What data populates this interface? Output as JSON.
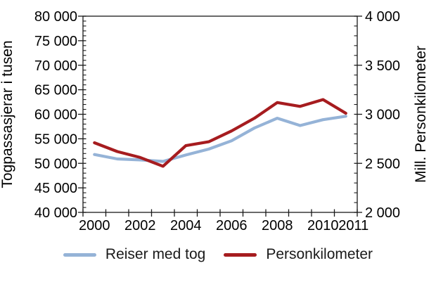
{
  "chart_data": {
    "type": "line",
    "title": "",
    "categories": [
      2000,
      2001,
      2002,
      2003,
      2004,
      2005,
      2006,
      2007,
      2008,
      2009,
      2010,
      2011
    ],
    "series": [
      {
        "name": "Reiser med tog",
        "axis": "left",
        "color": "#95B3D7",
        "values": [
          51800,
          50900,
          50700,
          50400,
          51700,
          52900,
          54600,
          57200,
          59200,
          57700,
          58900,
          59600
        ]
      },
      {
        "name": "Personkilometer",
        "axis": "right",
        "color": "#A61C1F",
        "values": [
          2710,
          2620,
          2560,
          2470,
          2680,
          2720,
          2830,
          2960,
          3120,
          3080,
          3150,
          3010
        ]
      }
    ],
    "left_axis": {
      "title": "Togpassasjerar i tusen",
      "min": 40000,
      "max": 80000,
      "major_step": 5000,
      "minor_step": 1000,
      "tick_labels": [
        "80 000",
        "75 000",
        "70 000",
        "65 000",
        "60 000",
        "55 000",
        "50 000",
        "45 000",
        "40 000"
      ]
    },
    "right_axis": {
      "title": "Mill. Personkilometer",
      "min": 2000,
      "max": 4000,
      "major_step": 500,
      "minor_step": 100,
      "tick_labels": [
        "4 000",
        "3 500",
        "3 000",
        "2 500",
        "2 000"
      ]
    },
    "x_axis": {
      "tick_labels": [
        {
          "text": "2000",
          "index": 0
        },
        {
          "text": "2002",
          "index": 2
        },
        {
          "text": "2004",
          "index": 4
        },
        {
          "text": "2006",
          "index": 6
        },
        {
          "text": "2008",
          "index": 8
        },
        {
          "text": "2010",
          "index": 10
        },
        {
          "text": "2011",
          "index": 11
        }
      ]
    },
    "grid": false,
    "legend_position": "bottom"
  },
  "legend": {
    "series1": "Reiser med tog",
    "series2": "Personkilometer"
  },
  "axes_titles": {
    "left": "Togpassasjerar i tusen",
    "right": "Mill. Personkilometer"
  },
  "colors": {
    "series1": "#95B3D7",
    "series2": "#A61C1F",
    "axis": "#1a1a1a",
    "text": "#000000"
  }
}
